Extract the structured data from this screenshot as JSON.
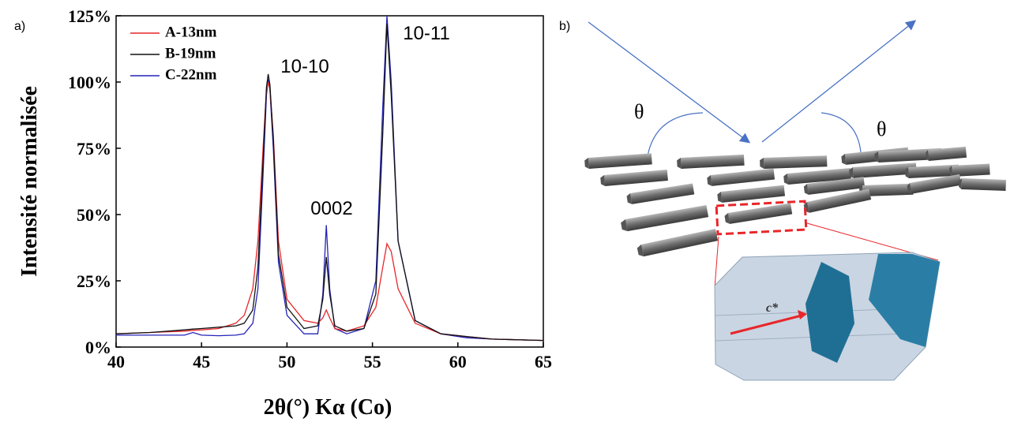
{
  "panel_labels": [
    "a)",
    "b)"
  ],
  "chart_data": {
    "type": "line",
    "xlabel": "2θ(°) Kα (Co)",
    "ylabel": "Intensité normalisée",
    "x": [
      40,
      42,
      44,
      44.5,
      45,
      46,
      47,
      47.5,
      48,
      48.3,
      48.6,
      48.8,
      48.9,
      49.0,
      49.2,
      49.5,
      50,
      51,
      51.8,
      52.1,
      52.3,
      52.5,
      52.8,
      53.5,
      54.5,
      55.2,
      55.6,
      55.85,
      56.1,
      56.5,
      57.5,
      59,
      60.5,
      62,
      65
    ],
    "series": [
      {
        "name": "A-13nm",
        "color": "#e8262a",
        "values": [
          5,
          5.5,
          6,
          6.3,
          6.5,
          7,
          9,
          12,
          22,
          40,
          75,
          97,
          100,
          97,
          80,
          40,
          18,
          10,
          9,
          11,
          14,
          11,
          7,
          6,
          8,
          15,
          30,
          39,
          36,
          22,
          9,
          5,
          4,
          3,
          2.5
        ]
      },
      {
        "name": "B-19nm",
        "color": "#111111",
        "values": [
          5,
          5.5,
          6.5,
          6.8,
          7,
          7.5,
          8,
          9,
          14,
          30,
          70,
          98,
          103,
          99,
          78,
          35,
          15,
          7,
          8,
          18,
          34,
          20,
          8,
          6,
          7,
          20,
          80,
          122,
          95,
          40,
          10,
          5,
          4,
          3,
          2.5
        ]
      },
      {
        "name": "C-22nm",
        "color": "#2424b8",
        "values": [
          4.5,
          4.5,
          4.5,
          5.5,
          4.5,
          4.3,
          4.5,
          5,
          9,
          22,
          65,
          95,
          101,
          97,
          75,
          32,
          12,
          5,
          5,
          20,
          46,
          22,
          7,
          5,
          7,
          25,
          90,
          125,
          100,
          40,
          10,
          5,
          3.5,
          3,
          2.5
        ]
      }
    ],
    "xlim": [
      40,
      65
    ],
    "xticks": [
      40,
      45,
      50,
      55,
      60,
      65
    ],
    "ylim": [
      0,
      125
    ],
    "yticks": [
      {
        "value": 0,
        "label": "0%"
      },
      {
        "value": 25,
        "label": "25%"
      },
      {
        "value": 50,
        "label": "50%"
      },
      {
        "value": 75,
        "label": "75%"
      },
      {
        "value": 100,
        "label": "100%"
      },
      {
        "value": 125,
        "label": "125%"
      }
    ],
    "legend": "upper left",
    "annotations": [
      "10-10",
      "0002",
      "10-11"
    ]
  },
  "diagram": {
    "angle_labels": [
      "θ",
      "θ"
    ],
    "vector_label": "c*"
  }
}
